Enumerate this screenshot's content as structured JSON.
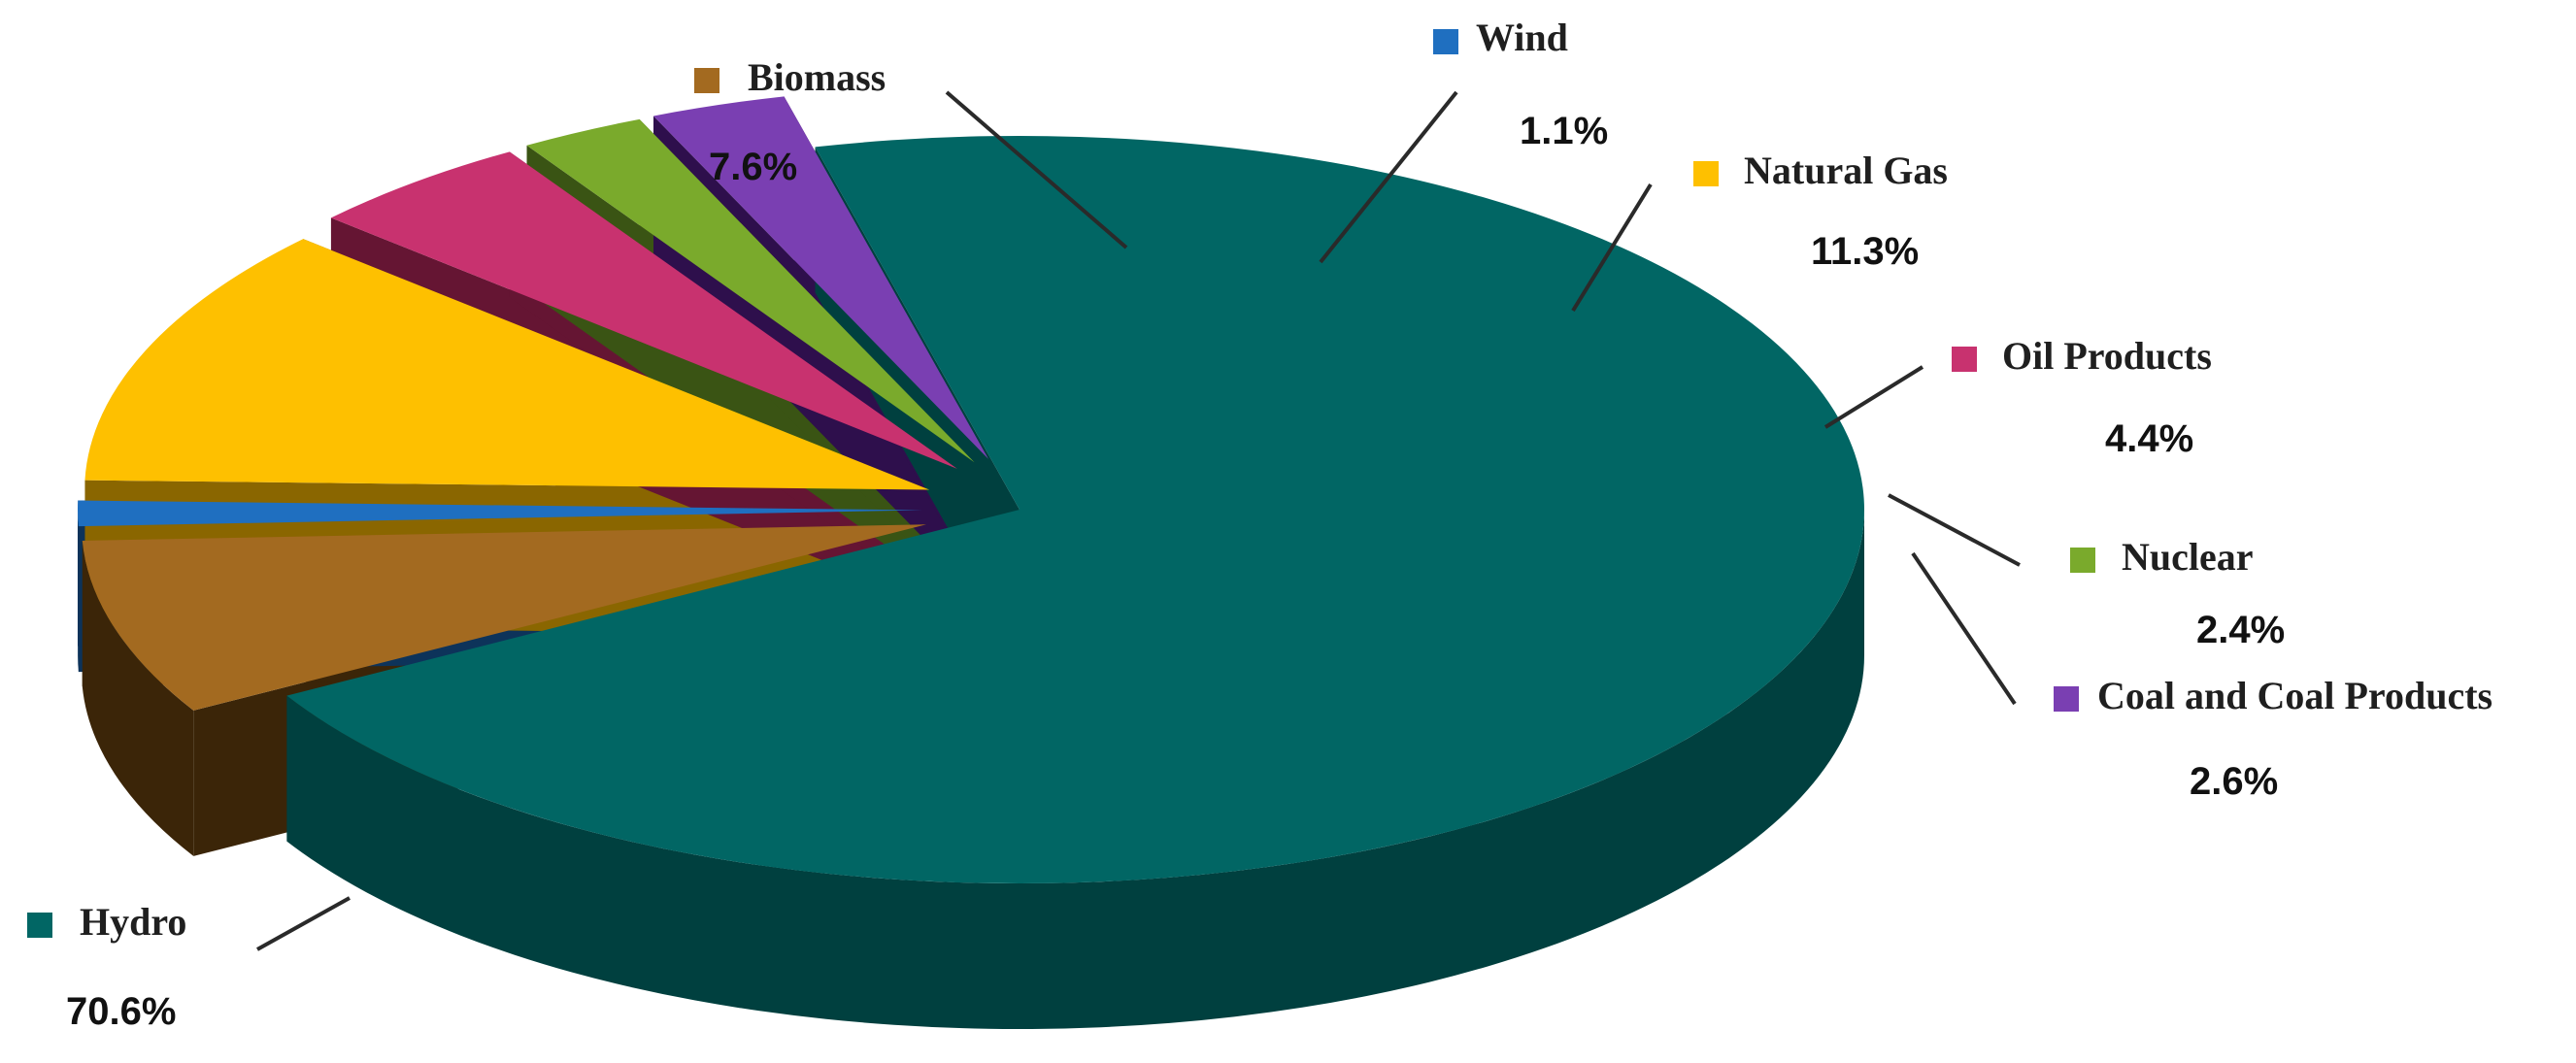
{
  "chart_data": {
    "type": "pie",
    "title": "",
    "legend": "labels-around",
    "slices": [
      {
        "label": "Hydro",
        "value": 70.6,
        "value_label": "70.6%",
        "color": "#016664",
        "side_color": "#00403f",
        "exploded": false
      },
      {
        "label": "Biomass",
        "value": 7.6,
        "value_label": "7.6%",
        "color": "#a36a20",
        "side_color": "#3b2508",
        "exploded": true
      },
      {
        "label": "Wind",
        "value": 1.1,
        "value_label": "1.1%",
        "color": "#1f6fc0",
        "side_color": "#0d335a",
        "exploded": true
      },
      {
        "label": "Natural Gas",
        "value": 11.3,
        "value_label": "11.3%",
        "color": "#fec000",
        "side_color": "#8a6600",
        "exploded": true
      },
      {
        "label": "Oil Products",
        "value": 4.4,
        "value_label": "4.4%",
        "color": "#c8326f",
        "side_color": "#651533",
        "exploded": true
      },
      {
        "label": "Nuclear",
        "value": 2.4,
        "value_label": "2.4%",
        "color": "#7aaa2c",
        "side_color": "#3a5414",
        "exploded": true
      },
      {
        "label": "Coal and Coal Products",
        "value": 2.6,
        "value_label": "2.6%",
        "color": "#7a3fb2",
        "side_color": "#2e0f4c",
        "exploded": true
      }
    ]
  }
}
